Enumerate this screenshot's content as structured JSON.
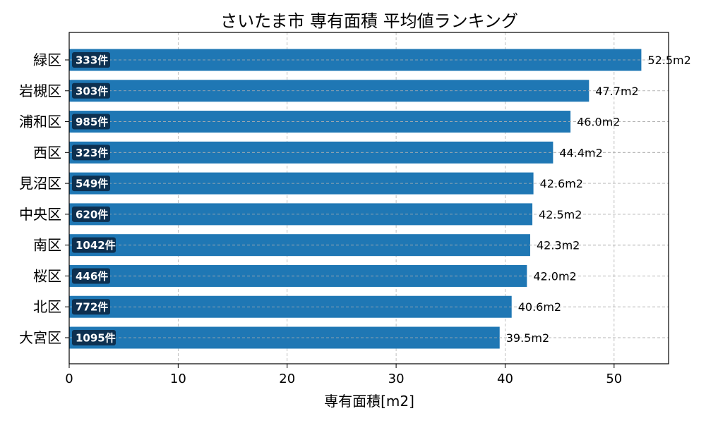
{
  "chart_data": {
    "type": "bar",
    "orientation": "horizontal",
    "title": "さいたま市 専有面積 平均値ランキング",
    "xlabel": "専有面積[m2]",
    "ylabel": "",
    "xlim": [
      0,
      55
    ],
    "xticks": [
      0,
      10,
      20,
      30,
      40,
      50
    ],
    "grid": true,
    "categories": [
      "緑区",
      "岩槻区",
      "浦和区",
      "西区",
      "見沼区",
      "中央区",
      "南区",
      "桜区",
      "北区",
      "大宮区"
    ],
    "values": [
      52.5,
      47.7,
      46.0,
      44.4,
      42.6,
      42.5,
      42.3,
      42.0,
      40.6,
      39.5
    ],
    "value_labels": [
      "52.5m2",
      "47.7m2",
      "46.0m2",
      "44.4m2",
      "42.6m2",
      "42.5m2",
      "42.3m2",
      "42.0m2",
      "40.6m2",
      "39.5m2"
    ],
    "counts": [
      333,
      303,
      985,
      323,
      549,
      620,
      1042,
      446,
      772,
      1095
    ],
    "count_labels": [
      "333件",
      "303件",
      "985件",
      "323件",
      "549件",
      "620件",
      "1042件",
      "446件",
      "772件",
      "1095件"
    ],
    "colors": {
      "bar": "#1f77b4",
      "count_box": "#0d3050",
      "grid": "#b0b0b0"
    }
  }
}
